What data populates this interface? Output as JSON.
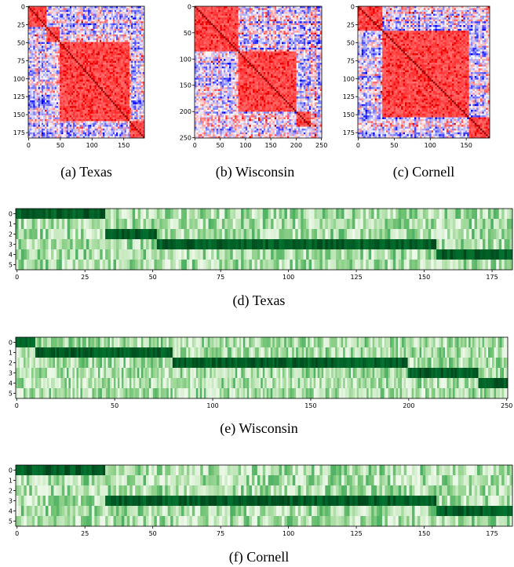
{
  "chart_data": [
    {
      "type": "heatmap",
      "caption": "(a) Texas",
      "xticks": [
        0,
        50,
        100,
        150
      ],
      "yticks": [
        0,
        25,
        50,
        75,
        100,
        125,
        150,
        175
      ],
      "n": 183,
      "blocks": [
        [
          0,
          30
        ],
        [
          30,
          50
        ],
        [
          50,
          160
        ],
        [
          160,
          183
        ]
      ],
      "colormap": "bwr"
    },
    {
      "type": "heatmap",
      "caption": "(b) Wisconsin",
      "xticks": [
        0,
        50,
        100,
        150,
        200,
        250
      ],
      "yticks": [
        0,
        50,
        100,
        150,
        200,
        250
      ],
      "n": 251,
      "blocks": [
        [
          0,
          85
        ],
        [
          85,
          200
        ],
        [
          200,
          230
        ]
      ],
      "colormap": "bwr"
    },
    {
      "type": "heatmap",
      "caption": "(c) Cornell",
      "xticks": [
        0,
        50,
        100,
        150
      ],
      "yticks": [
        0,
        25,
        50,
        75,
        100,
        125,
        150,
        175
      ],
      "n": 183,
      "blocks": [
        [
          0,
          35
        ],
        [
          35,
          155
        ],
        [
          155,
          183
        ]
      ],
      "colormap": "bwr"
    },
    {
      "type": "heatmap",
      "caption": "(d) Texas",
      "xticks": [
        0,
        25,
        50,
        75,
        100,
        125,
        150,
        175
      ],
      "yticks": [
        0,
        1,
        2,
        3,
        4,
        5
      ],
      "n": 183,
      "dominant": [
        [
          0,
          33,
          0
        ],
        [
          33,
          52,
          2
        ],
        [
          52,
          155,
          3
        ],
        [
          155,
          183,
          4
        ]
      ],
      "colormap": "Greens"
    },
    {
      "type": "heatmap",
      "caption": "(e) Wisconsin",
      "xticks": [
        0,
        50,
        100,
        150,
        200,
        250
      ],
      "yticks": [
        0,
        1,
        2,
        3,
        4,
        5
      ],
      "n": 251,
      "dominant": [
        [
          0,
          10,
          0
        ],
        [
          10,
          80,
          1
        ],
        [
          80,
          200,
          2
        ],
        [
          200,
          236,
          3
        ],
        [
          236,
          251,
          4
        ]
      ],
      "colormap": "Greens"
    },
    {
      "type": "heatmap",
      "caption": "(f) Cornell",
      "xticks": [
        0,
        25,
        50,
        75,
        100,
        125,
        150,
        175
      ],
      "yticks": [
        0,
        1,
        2,
        3,
        4,
        5
      ],
      "n": 183,
      "dominant": [
        [
          0,
          33,
          0
        ],
        [
          33,
          52,
          3
        ],
        [
          52,
          155,
          3
        ],
        [
          155,
          183,
          4
        ]
      ],
      "colormap": "Greens"
    }
  ]
}
